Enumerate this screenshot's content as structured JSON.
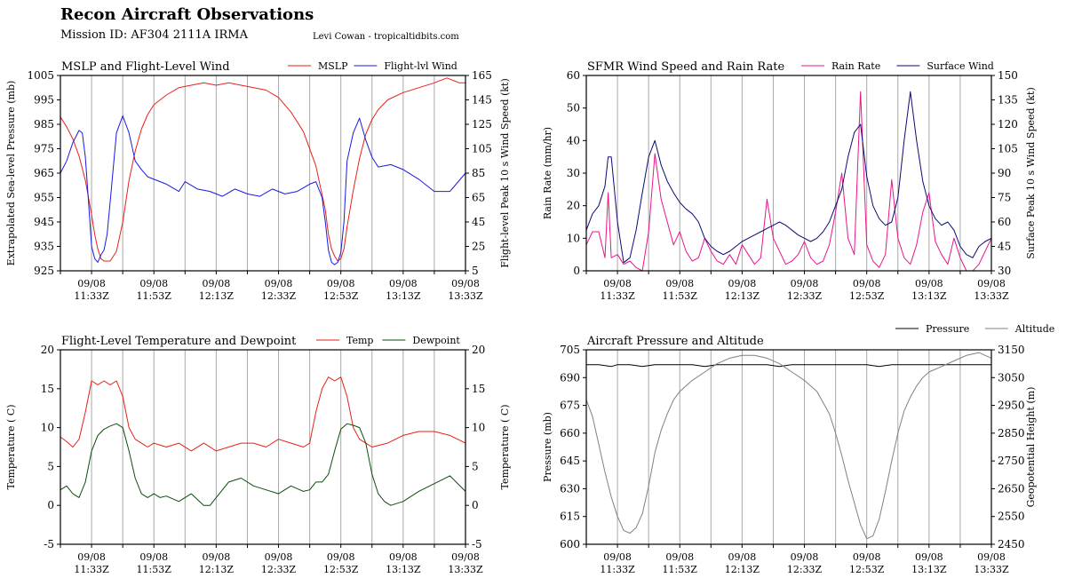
{
  "header": {
    "title": "Recon Aircraft Observations",
    "mission": "Mission ID: AF304 2111A IRMA",
    "credit": "Levi Cowan - tropicaltidbits.com"
  },
  "colors": {
    "mslp": "#e8201a",
    "flight_wind": "#1a1ae0",
    "rain": "#e8168c",
    "surface_wind": "#0a0a78",
    "temp": "#e8201a",
    "dewpoint": "#0b4d0b",
    "pressure": "#000000",
    "altitude": "#808080",
    "vgrid": "#a8a8a8"
  },
  "time_axis": {
    "labels": [
      [
        "09/08",
        "11:33Z"
      ],
      [
        "09/08",
        "11:53Z"
      ],
      [
        "09/08",
        "12:13Z"
      ],
      [
        "09/08",
        "12:33Z"
      ],
      [
        "09/08",
        "12:53Z"
      ],
      [
        "09/08",
        "13:13Z"
      ],
      [
        "09/08",
        "13:33Z"
      ]
    ],
    "label_minutes": [
      0,
      20,
      40,
      60,
      80,
      100,
      120
    ],
    "range_minutes": [
      -10,
      120
    ],
    "vgrid_minutes": [
      0,
      10,
      20,
      30,
      40,
      50,
      60,
      70,
      80,
      90,
      100,
      110
    ]
  },
  "chart_data": [
    {
      "type": "line",
      "title": "MSLP and Flight-Level Wind",
      "ylabel_left": "Extrapolated Sea-level Pressure (mb)",
      "ylabel_right": "Flight-level Peak 10 s Wind Speed (kt)",
      "ylim_left": [
        925,
        1005
      ],
      "yticks_left": [
        925,
        935,
        945,
        955,
        965,
        975,
        985,
        995,
        1005
      ],
      "ylim_right": [
        5,
        165
      ],
      "yticks_right": [
        5,
        25,
        45,
        65,
        85,
        105,
        125,
        145,
        165
      ],
      "legend_position": "top-right",
      "x_unit": "minutes after 09/08 11:33Z",
      "series": [
        {
          "name": "MSLP",
          "axis": "left",
          "color": "#e8201a",
          "x": [
            -10,
            -8,
            -6,
            -4,
            -2,
            0,
            1,
            2,
            3,
            4,
            6,
            8,
            10,
            12,
            14,
            16,
            18,
            20,
            24,
            28,
            32,
            36,
            40,
            44,
            48,
            52,
            56,
            60,
            64,
            68,
            72,
            75,
            76,
            77,
            78,
            79,
            80,
            81,
            82,
            84,
            86,
            88,
            90,
            92,
            95,
            100,
            105,
            110,
            114,
            116,
            118,
            120
          ],
          "y": [
            988,
            984,
            979,
            972,
            962,
            948,
            940,
            934,
            930,
            929,
            929,
            933,
            945,
            962,
            974,
            983,
            989,
            993,
            997,
            1000,
            1001,
            1002,
            1001,
            1002,
            1001,
            1000,
            999,
            996,
            990,
            982,
            968,
            950,
            940,
            934,
            931,
            929,
            930,
            934,
            943,
            958,
            971,
            981,
            987,
            991,
            995,
            998,
            1000,
            1002,
            1004,
            1003,
            1002,
            1002
          ]
        },
        {
          "name": "Flight-lvl Wind",
          "axis": "right",
          "color": "#1a1ae0",
          "x": [
            -10,
            -8,
            -6,
            -4,
            -3,
            -2,
            -1,
            0,
            1,
            2,
            3,
            4,
            5,
            6,
            8,
            10,
            11,
            12,
            14,
            16,
            18,
            20,
            24,
            28,
            30,
            34,
            38,
            42,
            46,
            50,
            54,
            58,
            62,
            66,
            70,
            72,
            74,
            75,
            76,
            77,
            78,
            79,
            80,
            81,
            82,
            84,
            86,
            88,
            90,
            92,
            96,
            100,
            105,
            110,
            115,
            120
          ],
          "y": [
            85,
            95,
            110,
            120,
            118,
            98,
            62,
            25,
            15,
            12,
            18,
            22,
            35,
            62,
            118,
            132,
            125,
            118,
            95,
            88,
            82,
            80,
            76,
            70,
            78,
            72,
            70,
            66,
            72,
            68,
            66,
            72,
            68,
            70,
            76,
            78,
            65,
            45,
            22,
            12,
            10,
            12,
            20,
            45,
            95,
            118,
            130,
            112,
            98,
            90,
            92,
            88,
            80,
            70,
            70,
            85
          ]
        }
      ]
    },
    {
      "type": "line",
      "title": "SFMR Wind Speed and Rain Rate",
      "ylabel_left": "Rain Rate (mm/hr)",
      "ylabel_right": "Surface Peak 10 s Wind Speed (kt)",
      "ylim_left": [
        0,
        60
      ],
      "yticks_left": [
        0,
        10,
        20,
        30,
        40,
        50,
        60
      ],
      "ylim_right": [
        30,
        150
      ],
      "yticks_right": [
        30,
        45,
        60,
        75,
        90,
        105,
        120,
        135,
        150
      ],
      "legend_position": "top-right",
      "x_unit": "minutes after 09/08 11:33Z",
      "series": [
        {
          "name": "Rain Rate",
          "axis": "left",
          "color": "#e8168c",
          "x": [
            -10,
            -8,
            -6,
            -4,
            -3,
            -2,
            0,
            2,
            4,
            6,
            8,
            10,
            12,
            14,
            16,
            18,
            20,
            22,
            24,
            26,
            28,
            30,
            32,
            34,
            36,
            38,
            40,
            42,
            44,
            46,
            48,
            50,
            52,
            54,
            56,
            58,
            60,
            62,
            64,
            66,
            68,
            70,
            72,
            74,
            76,
            78,
            80,
            82,
            84,
            86,
            88,
            90,
            92,
            94,
            96,
            98,
            100,
            102,
            104,
            106,
            108,
            110,
            112,
            114,
            116,
            118,
            120
          ],
          "y": [
            8,
            12,
            12,
            4,
            24,
            4,
            5,
            2,
            3,
            1,
            0,
            12,
            36,
            22,
            15,
            8,
            12,
            6,
            3,
            4,
            10,
            6,
            3,
            2,
            5,
            2,
            8,
            5,
            2,
            4,
            22,
            10,
            6,
            2,
            3,
            5,
            9,
            4,
            2,
            3,
            8,
            18,
            30,
            10,
            5,
            55,
            8,
            3,
            1,
            5,
            28,
            10,
            4,
            2,
            8,
            18,
            24,
            9,
            5,
            2,
            10,
            4,
            0,
            0,
            2,
            6,
            10
          ]
        },
        {
          "name": "Surface Wind",
          "axis": "right",
          "color": "#0a0a78",
          "x": [
            -10,
            -8,
            -6,
            -4,
            -3,
            -2,
            0,
            2,
            4,
            6,
            8,
            10,
            12,
            14,
            16,
            18,
            20,
            22,
            24,
            26,
            28,
            30,
            32,
            34,
            36,
            38,
            40,
            42,
            44,
            46,
            48,
            50,
            52,
            54,
            56,
            58,
            60,
            62,
            64,
            66,
            68,
            70,
            72,
            74,
            76,
            78,
            80,
            82,
            84,
            86,
            88,
            90,
            92,
            94,
            96,
            98,
            100,
            102,
            104,
            106,
            108,
            110,
            112,
            114,
            116,
            118,
            120
          ],
          "y": [
            55,
            65,
            70,
            82,
            100,
            100,
            60,
            35,
            38,
            55,
            78,
            100,
            110,
            95,
            85,
            78,
            72,
            68,
            65,
            60,
            50,
            45,
            42,
            40,
            42,
            45,
            48,
            50,
            52,
            54,
            56,
            58,
            60,
            58,
            55,
            52,
            50,
            48,
            50,
            54,
            60,
            70,
            80,
            100,
            115,
            120,
            88,
            70,
            62,
            58,
            60,
            75,
            110,
            140,
            110,
            85,
            70,
            62,
            58,
            60,
            55,
            45,
            40,
            38,
            45,
            48,
            50
          ]
        }
      ]
    },
    {
      "type": "line",
      "title": "Flight-Level Temperature and Dewpoint",
      "ylabel_left": "Temperature ( C)",
      "ylabel_right": "Temperature ( C)",
      "ylim_left": [
        -5,
        20
      ],
      "yticks_left": [
        -5,
        0,
        5,
        10,
        15,
        20
      ],
      "ylim_right": [
        -5,
        20
      ],
      "yticks_right": [
        -5,
        0,
        5,
        10,
        15,
        20
      ],
      "legend_position": "top-right",
      "x_unit": "minutes after 09/08 11:33Z",
      "series": [
        {
          "name": "Temp",
          "axis": "left",
          "color": "#e8201a",
          "x": [
            -10,
            -8,
            -6,
            -4,
            -2,
            -1,
            0,
            2,
            4,
            6,
            8,
            10,
            12,
            14,
            16,
            18,
            20,
            24,
            28,
            32,
            36,
            40,
            44,
            48,
            52,
            56,
            60,
            64,
            68,
            70,
            72,
            74,
            76,
            78,
            80,
            82,
            84,
            86,
            88,
            90,
            95,
            100,
            105,
            110,
            115,
            120
          ],
          "y": [
            8.8,
            8.2,
            7.5,
            8.5,
            12,
            14,
            16,
            15.5,
            16,
            15.5,
            16,
            14,
            10,
            8.5,
            8,
            7.5,
            8,
            7.5,
            8,
            7,
            8,
            7,
            7.5,
            8,
            8,
            7.5,
            8.5,
            8,
            7.5,
            8,
            12,
            15,
            16.5,
            16,
            16.5,
            14,
            10,
            8.5,
            8,
            7.5,
            8,
            9,
            9.5,
            9.5,
            9,
            8
          ]
        },
        {
          "name": "Dewpoint",
          "axis": "left",
          "color": "#0b4d0b",
          "x": [
            -10,
            -8,
            -6,
            -4,
            -2,
            0,
            2,
            4,
            6,
            8,
            10,
            12,
            14,
            16,
            18,
            20,
            22,
            24,
            28,
            32,
            36,
            38,
            40,
            44,
            48,
            52,
            56,
            60,
            64,
            68,
            70,
            72,
            74,
            76,
            78,
            80,
            82,
            84,
            86,
            88,
            90,
            92,
            94,
            96,
            100,
            105,
            110,
            115,
            120
          ],
          "y": [
            2,
            2.5,
            1.5,
            1,
            3,
            7,
            9,
            9.8,
            10.2,
            10.5,
            10,
            7,
            3.5,
            1.5,
            1,
            1.5,
            1,
            1.2,
            0.5,
            1.5,
            0,
            0,
            1,
            3,
            3.5,
            2.5,
            2,
            1.5,
            2.5,
            1.8,
            2,
            3,
            3,
            4,
            7,
            9.8,
            10.5,
            10.3,
            10,
            8,
            4,
            1.5,
            0.5,
            0,
            0.5,
            1.8,
            2.8,
            3.8,
            1.8
          ]
        }
      ]
    },
    {
      "type": "line",
      "title": "Aircraft Pressure and Altitude",
      "ylabel_left": "Pressure (mb)",
      "ylabel_right": "Geopotential Height (m)",
      "ylim_left": [
        600,
        705
      ],
      "yticks_left": [
        600,
        615,
        630,
        645,
        660,
        675,
        690,
        705
      ],
      "ylim_right": [
        2450,
        3150
      ],
      "yticks_right": [
        2450,
        2550,
        2650,
        2750,
        2850,
        2950,
        3050,
        3150
      ],
      "legend_position": "above top-right",
      "x_unit": "minutes after 09/08 11:33Z",
      "series": [
        {
          "name": "Pressure",
          "axis": "left",
          "color": "#000000",
          "x": [
            -10,
            -6,
            -2,
            0,
            4,
            8,
            12,
            16,
            20,
            24,
            28,
            32,
            36,
            40,
            44,
            48,
            52,
            56,
            60,
            64,
            68,
            72,
            76,
            80,
            84,
            88,
            92,
            96,
            100,
            104,
            108,
            112,
            116,
            120
          ],
          "y": [
            697,
            697,
            696,
            697,
            697,
            696,
            697,
            697,
            697,
            697,
            696,
            697,
            697,
            697,
            697,
            697,
            696,
            697,
            697,
            697,
            697,
            697,
            697,
            697,
            696,
            697,
            697,
            697,
            697,
            697,
            697,
            697,
            697,
            697
          ]
        },
        {
          "name": "Altitude",
          "axis": "right",
          "color": "#808080",
          "x": [
            -10,
            -8,
            -6,
            -4,
            -2,
            0,
            2,
            4,
            6,
            8,
            10,
            12,
            14,
            16,
            18,
            20,
            24,
            28,
            32,
            36,
            40,
            44,
            48,
            52,
            56,
            60,
            64,
            68,
            70,
            72,
            74,
            76,
            78,
            80,
            82,
            84,
            86,
            88,
            90,
            92,
            94,
            96,
            98,
            100,
            104,
            108,
            112,
            116,
            120
          ],
          "y": [
            2970,
            2910,
            2810,
            2710,
            2620,
            2550,
            2500,
            2490,
            2510,
            2560,
            2660,
            2780,
            2860,
            2920,
            2970,
            3000,
            3040,
            3070,
            3100,
            3120,
            3130,
            3130,
            3120,
            3100,
            3070,
            3040,
            3000,
            2920,
            2850,
            2770,
            2680,
            2600,
            2520,
            2470,
            2480,
            2540,
            2640,
            2750,
            2850,
            2930,
            2980,
            3020,
            3050,
            3070,
            3090,
            3110,
            3130,
            3140,
            3120
          ]
        }
      ]
    }
  ]
}
